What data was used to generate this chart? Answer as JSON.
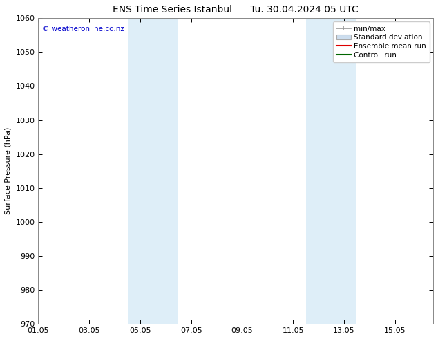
{
  "title_left": "ENS Time Series Istanbul",
  "title_right": "Tu. 30.04.2024 05 UTC",
  "ylabel": "Surface Pressure (hPa)",
  "ylim": [
    970,
    1060
  ],
  "yticks": [
    970,
    980,
    990,
    1000,
    1010,
    1020,
    1030,
    1040,
    1050,
    1060
  ],
  "xlim": [
    0.0,
    15.5
  ],
  "xtick_positions": [
    0.0,
    2.0,
    4.0,
    6.0,
    8.0,
    10.0,
    12.0,
    14.0
  ],
  "xtick_labels": [
    "01.05",
    "03.05",
    "05.05",
    "07.05",
    "09.05",
    "11.05",
    "13.05",
    "15.05"
  ],
  "shaded_bands": [
    {
      "start": 3.5,
      "end": 5.5
    },
    {
      "start": 10.5,
      "end": 12.5
    }
  ],
  "band_color": "#deeef8",
  "background_color": "#ffffff",
  "copyright_text": "© weatheronline.co.nz",
  "copyright_color": "#0000cc",
  "legend_entries": [
    {
      "label": "min/max",
      "color": "#999999",
      "type": "hline"
    },
    {
      "label": "Standard deviation",
      "color": "#ccddee",
      "type": "box"
    },
    {
      "label": "Ensemble mean run",
      "color": "#dd0000",
      "type": "line"
    },
    {
      "label": "Controll run",
      "color": "#006600",
      "type": "line"
    }
  ],
  "title_fontsize": 10,
  "axis_label_fontsize": 8,
  "tick_fontsize": 8,
  "legend_fontsize": 7.5,
  "spine_color": "#888888"
}
